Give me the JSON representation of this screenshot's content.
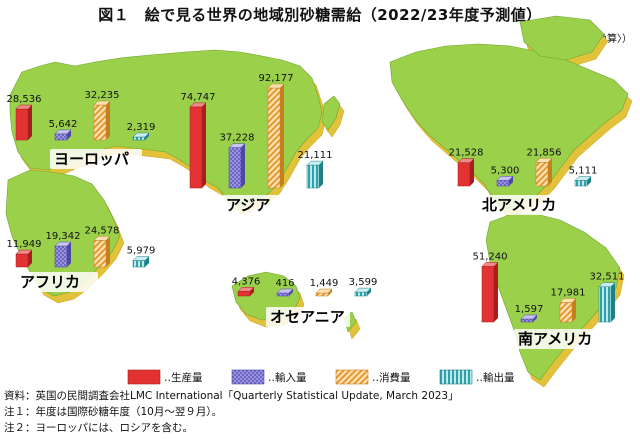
{
  "title": "図１　絵で見る世界の地域別砂糖需給（2022/23年度予測値）",
  "unit_label": "（千トン〈粗糖換算〉）",
  "chart_data": {
    "type": "bar",
    "title": "図１　絵で見る世界の地域別砂糖需給（2022/23年度予測値）",
    "unit": "千トン〈粗糖換算〉",
    "categories": [
      "ヨーロッパ",
      "アジア",
      "北アメリカ",
      "アフリカ",
      "オセアニア",
      "南アメリカ"
    ],
    "series": [
      {
        "name": "生産量",
        "color": "#e03030",
        "values": [
          28536,
          74747,
          21528,
          11949,
          4376,
          51240
        ]
      },
      {
        "name": "輸入量",
        "color": "#8c86d8",
        "values": [
          5642,
          37228,
          5300,
          19342,
          416,
          1597
        ]
      },
      {
        "name": "消費量",
        "color": "#f3b25c",
        "values": [
          32235,
          92177,
          21856,
          24578,
          1449,
          17981
        ]
      },
      {
        "name": "輸出量",
        "color": "#3fb0b8",
        "values": [
          2319,
          21111,
          5111,
          5979,
          3599,
          32511
        ]
      }
    ],
    "value_labels": [
      [
        "28,536",
        "5,642",
        "32,235",
        "2,319"
      ],
      [
        "74,747",
        "37,228",
        "92,177",
        "21,111"
      ],
      [
        "21,528",
        "5,300",
        "21,856",
        "5,111"
      ],
      [
        "11,949",
        "19,342",
        "24,578",
        "5,979"
      ],
      [
        "4,376",
        "416",
        "1,449",
        "3,599"
      ],
      [
        "51,240",
        "1,597",
        "17,981",
        "32,511"
      ]
    ],
    "legend": [
      "‥生産量",
      "‥輸入量",
      "‥消費量",
      "‥輸出量"
    ],
    "legend_position": "bottom"
  },
  "notes": [
    "資料：英国の民間調査会社LMC International「Quarterly Statistical Update, March 2023」",
    "注１：年度は国際砂糖年度（10月～翌９月）。",
    "注２：ヨーロッパには、ロシアを含む。"
  ]
}
